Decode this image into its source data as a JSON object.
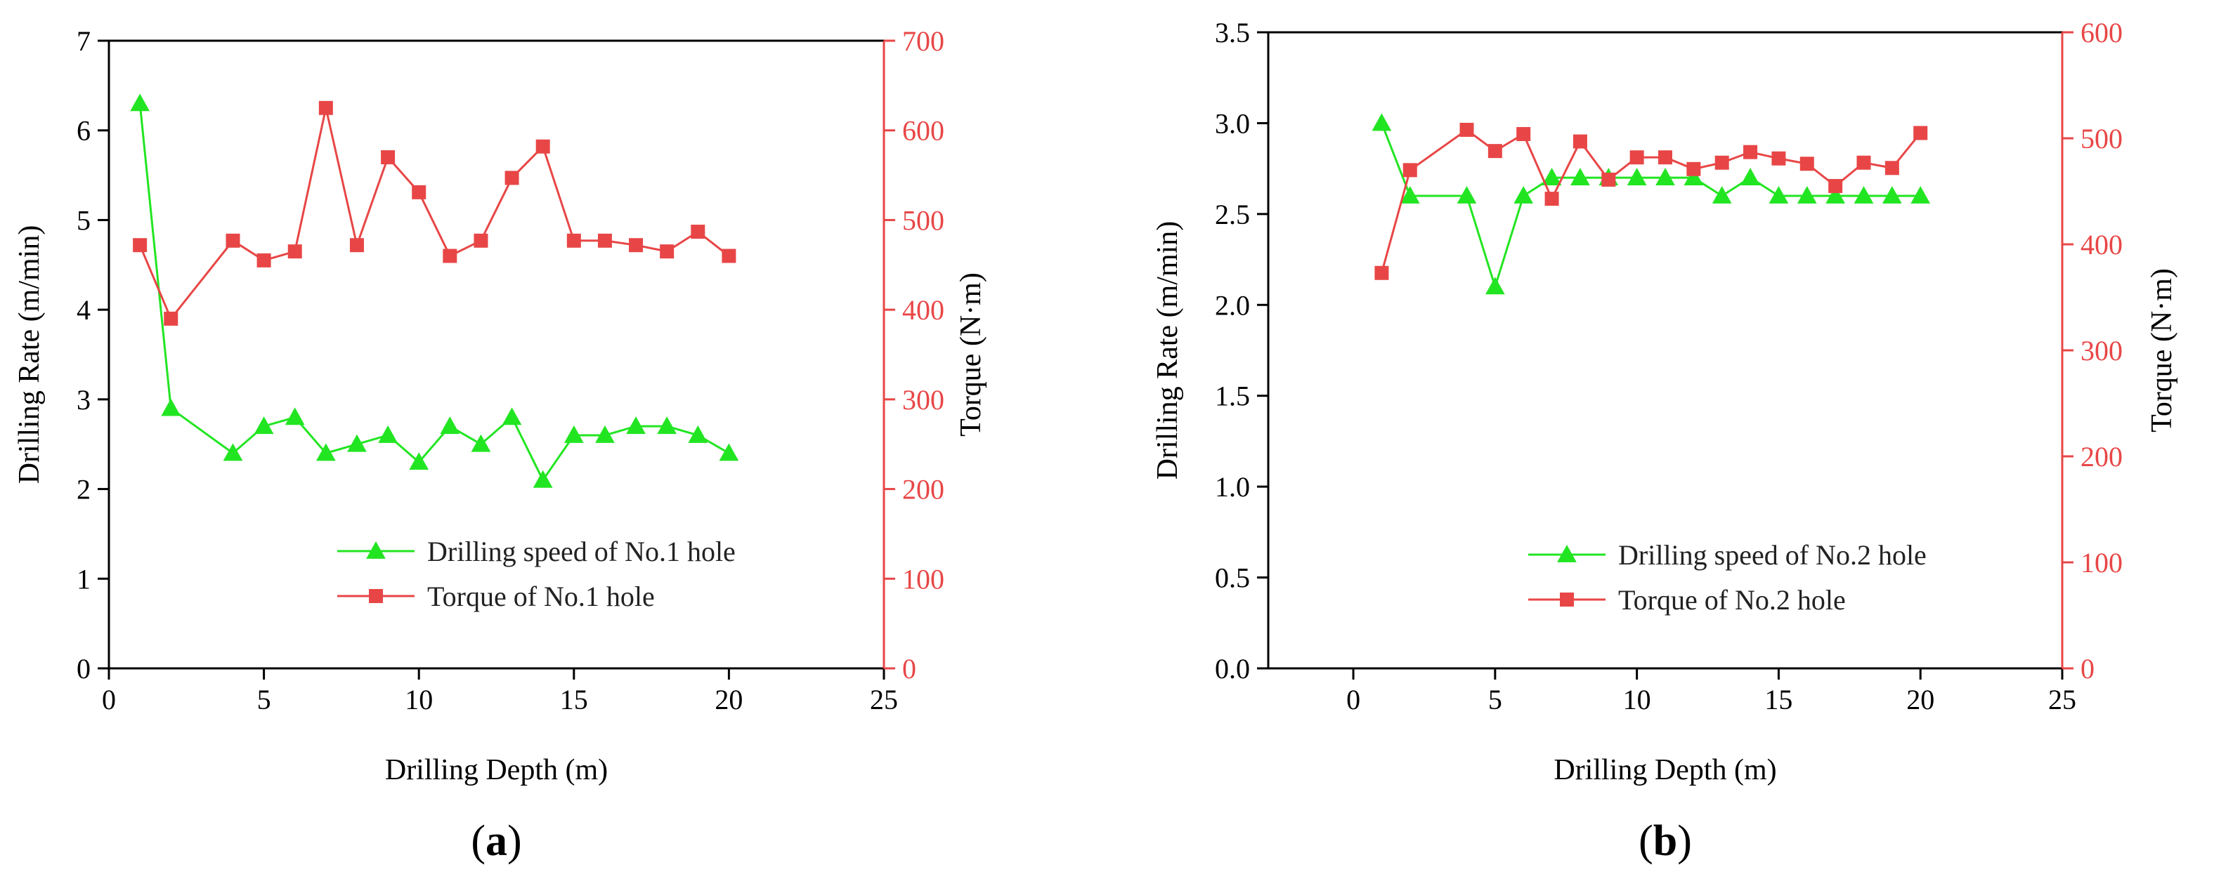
{
  "colors": {
    "speed": "#22e522",
    "torque": "#e84646",
    "axis": "#000000",
    "text": "#222222"
  },
  "chart_data": [
    {
      "type": "line",
      "panel_label": "a",
      "xlabel": "Drilling Depth (m)",
      "ylabel": "Drilling Rate (m/min)",
      "y2label": "Torque (N·m)",
      "xlim": [
        0,
        25
      ],
      "xticks": [
        0,
        5,
        10,
        15,
        20,
        25
      ],
      "ylim": [
        0,
        7
      ],
      "yticks": [
        0,
        1,
        2,
        3,
        4,
        5,
        6,
        7
      ],
      "y2lim": [
        0,
        700
      ],
      "y2ticks": [
        0,
        100,
        200,
        300,
        400,
        500,
        600,
        700
      ],
      "legend_position": "bottom-right",
      "series": [
        {
          "name": "Drilling speed of No.1 hole",
          "axis": "left",
          "marker": "triangle",
          "color": "#22e522",
          "x": [
            1,
            2,
            4,
            5,
            6,
            7,
            8,
            9,
            10,
            11,
            12,
            13,
            14,
            15,
            16,
            17,
            18,
            19,
            20
          ],
          "y": [
            6.3,
            2.9,
            2.4,
            2.7,
            2.8,
            2.4,
            2.5,
            2.6,
            2.3,
            2.7,
            2.5,
            2.8,
            2.1,
            2.6,
            2.6,
            2.7,
            2.7,
            2.6,
            2.4
          ]
        },
        {
          "name": "Torque of No.1 hole",
          "axis": "right",
          "marker": "square",
          "color": "#e84646",
          "x": [
            1,
            2,
            4,
            5,
            6,
            7,
            8,
            9,
            10,
            11,
            12,
            13,
            14,
            15,
            16,
            17,
            18,
            19,
            20
          ],
          "y": [
            472,
            390,
            477,
            455,
            465,
            625,
            472,
            570,
            531,
            460,
            477,
            547,
            582,
            477,
            477,
            472,
            465,
            487,
            460
          ]
        }
      ]
    },
    {
      "type": "line",
      "panel_label": "b",
      "xlabel": "Drilling Depth (m)",
      "ylabel": "Drilling Rate (m/min)",
      "y2label": "Torque (N·m)",
      "xlim": [
        -3,
        25
      ],
      "xticks": [
        0,
        5,
        10,
        15,
        20,
        25
      ],
      "ylim": [
        0,
        3.5
      ],
      "yticks": [
        "0.0",
        "0.5",
        "1.0",
        "1.5",
        "2.0",
        "2.5",
        "3.0",
        "3.5"
      ],
      "y2lim": [
        0,
        600
      ],
      "y2ticks": [
        0,
        100,
        200,
        300,
        400,
        500,
        600
      ],
      "legend_position": "bottom-right",
      "series": [
        {
          "name": "Drilling speed of No.2 hole",
          "axis": "left",
          "marker": "triangle",
          "color": "#22e522",
          "x": [
            1,
            2,
            4,
            5,
            6,
            7,
            8,
            9,
            10,
            11,
            12,
            13,
            14,
            15,
            16,
            17,
            18,
            19,
            20
          ],
          "y": [
            3.0,
            2.6,
            2.6,
            2.1,
            2.6,
            2.7,
            2.7,
            2.7,
            2.7,
            2.7,
            2.7,
            2.6,
            2.7,
            2.6,
            2.6,
            2.6,
            2.6,
            2.6,
            2.6
          ]
        },
        {
          "name": "Torque of No.2 hole",
          "axis": "right",
          "marker": "square",
          "color": "#e84646",
          "x": [
            1,
            2,
            4,
            5,
            6,
            7,
            8,
            9,
            10,
            11,
            12,
            13,
            14,
            15,
            16,
            17,
            18,
            19,
            20
          ],
          "y": [
            373,
            470,
            508,
            488,
            504,
            443,
            497,
            461,
            482,
            482,
            471,
            477,
            487,
            481,
            476,
            455,
            477,
            472,
            505
          ]
        }
      ]
    }
  ]
}
